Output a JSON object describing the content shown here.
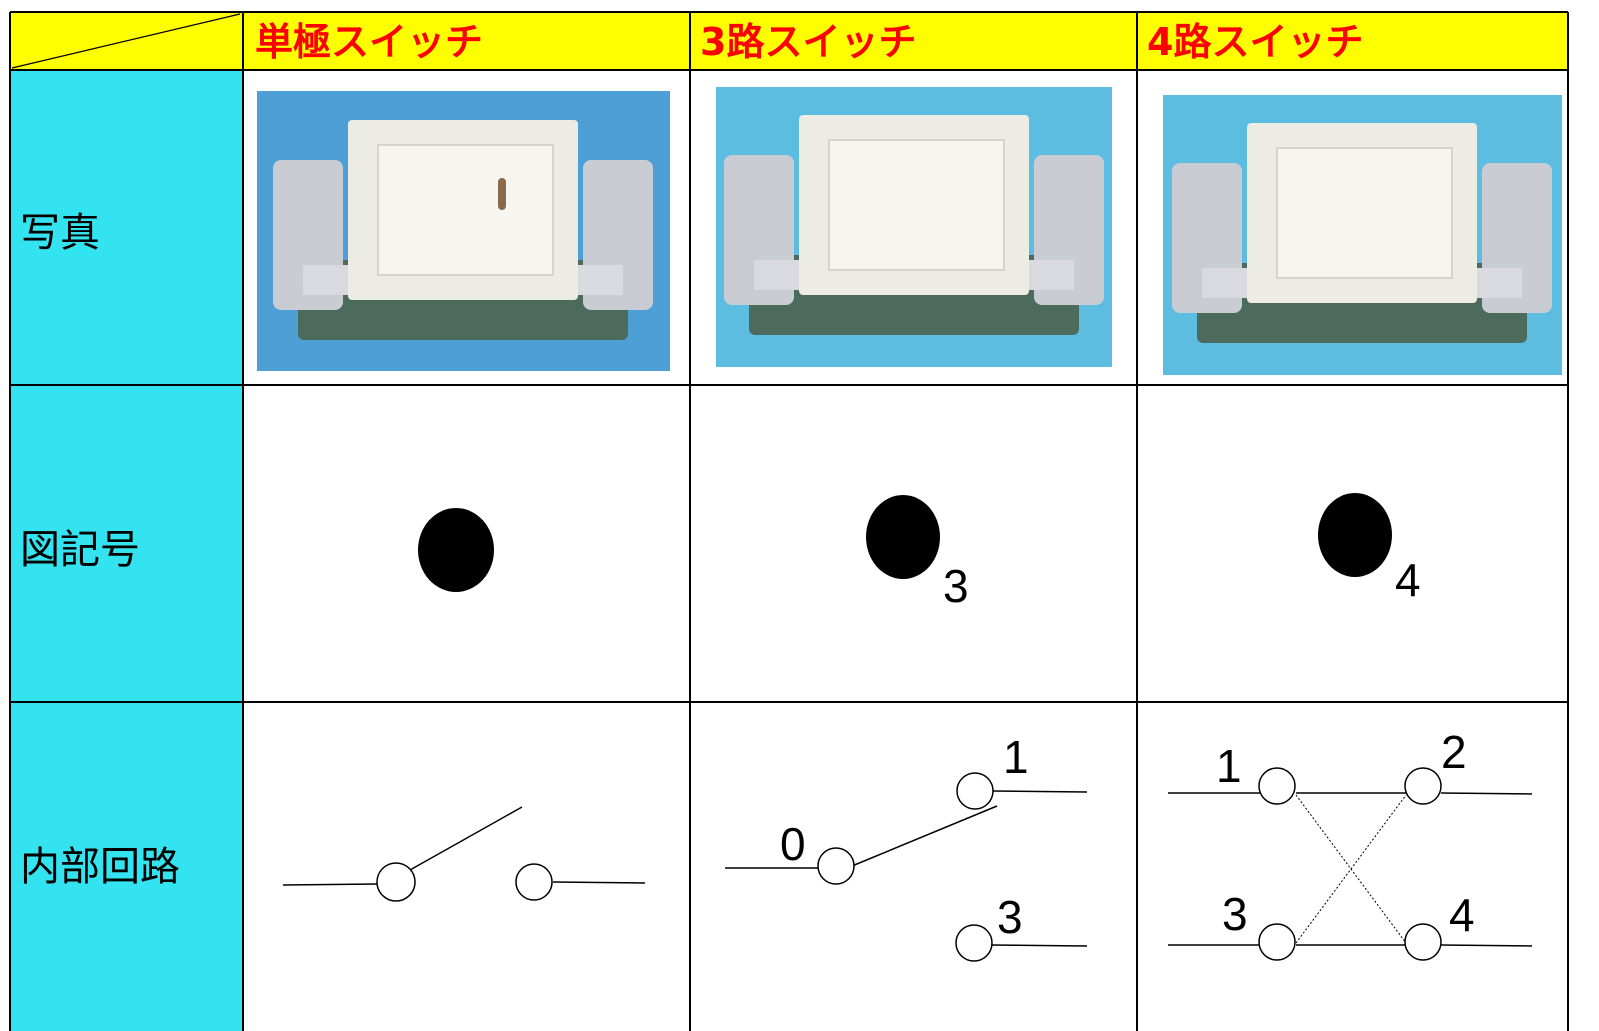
{
  "header": {
    "columns": [
      "単極スイッチ",
      "3路スイッチ",
      "4路スイッチ"
    ]
  },
  "rows": [
    {
      "label": "写真"
    },
    {
      "label": "図記号",
      "subscripts": [
        "3",
        "4"
      ]
    },
    {
      "label": "内部回路",
      "three_way_terminals": [
        "0",
        "1",
        "3"
      ],
      "four_way_terminals": [
        "1",
        "2",
        "3",
        "4"
      ]
    }
  ]
}
